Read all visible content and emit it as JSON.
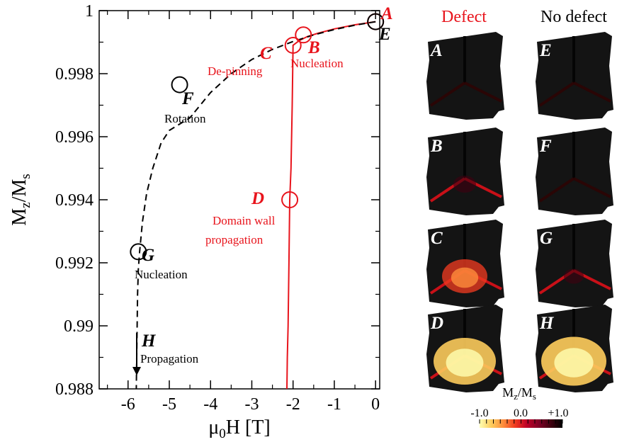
{
  "chart_data": {
    "type": "line",
    "xlabel_main": "μ",
    "xlabel_sub": "0",
    "xlabel_rest": "H [T]",
    "ylabel_main": "M",
    "ylabel_sub1": "z",
    "ylabel_mid": "/M",
    "ylabel_sub2": "s",
    "xlim": [
      -6.7,
      0.1
    ],
    "ylim": [
      0.988,
      1.0
    ],
    "xticks": [
      -6,
      -5,
      -4,
      -3,
      -2,
      -1,
      0
    ],
    "xtick_labels": [
      "-6",
      "-5",
      "-4",
      "-3",
      "-2",
      "-1",
      "0"
    ],
    "yticks": [
      0.988,
      0.99,
      0.992,
      0.994,
      0.996,
      0.998,
      1.0
    ],
    "ytick_labels": [
      "0.988",
      "0.99",
      "0.992",
      "0.994",
      "0.996",
      "0.998",
      "1"
    ],
    "series": [
      {
        "style": "solid",
        "color": "#e8141c",
        "x": [
          0,
          -0.5,
          -1.0,
          -1.4,
          -1.65,
          -1.85,
          -2.0,
          -2.02,
          -2.05,
          -2.08,
          -2.1,
          -2.12,
          -2.14,
          -2.15
        ],
        "y": [
          0.99965,
          0.99955,
          0.99942,
          0.99928,
          0.99918,
          0.99905,
          0.9989,
          0.997,
          0.995,
          0.994,
          0.992,
          0.99,
          0.989,
          0.988
        ]
      },
      {
        "style": "dashed",
        "color": "#000000",
        "x": [
          0,
          -0.5,
          -1.0,
          -1.5,
          -2.0,
          -2.5,
          -3.0,
          -3.5,
          -4.0,
          -4.5,
          -4.75,
          -5.0,
          -5.2,
          -5.4,
          -5.55,
          -5.65,
          -5.72,
          -5.75,
          -5.77,
          -5.78,
          -5.79,
          -5.8
        ],
        "y": [
          0.99965,
          0.99954,
          0.9994,
          0.99923,
          0.99902,
          0.99877,
          0.99845,
          0.998,
          0.9974,
          0.9966,
          0.99765,
          0.9962,
          0.9958,
          0.995,
          0.9942,
          0.9933,
          0.99235,
          0.9918,
          0.991,
          0.99,
          0.989,
          0.988
        ]
      }
    ],
    "points": [
      {
        "id": "A",
        "x": 0.0,
        "y": 0.99965,
        "color": "#e8141c",
        "label": "A"
      },
      {
        "id": "E",
        "x": 0.0,
        "y": 0.99965,
        "color": "#000000",
        "label": "E"
      },
      {
        "id": "B",
        "x": -1.75,
        "y": 0.99923,
        "color": "#e8141c",
        "label": "B",
        "desc": "Nucleation"
      },
      {
        "id": "C",
        "x": -2.0,
        "y": 0.9989,
        "color": "#e8141c",
        "label": "C",
        "desc": "De-pinning"
      },
      {
        "id": "D",
        "x": -2.08,
        "y": 0.994,
        "color": "#e8141c",
        "label": "D",
        "desc": "Domain wall propagation"
      },
      {
        "id": "F",
        "x": -4.75,
        "y": 0.99765,
        "color": "#000000",
        "label": "F",
        "desc": "Rotation"
      },
      {
        "id": "G",
        "x": -5.75,
        "y": 0.99235,
        "color": "#000000",
        "label": "G",
        "desc": "Nucleation"
      },
      {
        "id": "H",
        "x": -5.55,
        "y": 0.9887,
        "color": "#000000",
        "label": "H",
        "desc": "Propagation"
      }
    ],
    "annotations": {
      "A": "A",
      "B": "B",
      "C": "C",
      "D": "D",
      "E": "E",
      "F": "F",
      "G": "G",
      "H": "H",
      "B_desc": "Nucleation",
      "C_desc": "De-pinning",
      "D_desc1": "Domain wall",
      "D_desc2": "propagation",
      "F_desc": "Rotation",
      "G_desc": "Nucleation",
      "H_desc": "Propagation"
    }
  },
  "panels": {
    "col_defect": "Defect",
    "col_nodefect": "No defect",
    "defect_labels": [
      "A",
      "B",
      "C",
      "D"
    ],
    "nodefect_labels": [
      "E",
      "F",
      "G",
      "H"
    ],
    "defect_levels": [
      0.0,
      0.15,
      0.55,
      0.85
    ],
    "nodefect_levels": [
      0.0,
      0.0,
      0.1,
      0.9
    ]
  },
  "colorbar": {
    "title_main": "M",
    "title_sub1": "z",
    "title_mid": "/M",
    "title_sub2": "s",
    "tick_labels": [
      "-1.0",
      "0.0",
      "+1.0"
    ],
    "colors": [
      "#ffffb2",
      "#fecc5c",
      "#fd8d3c",
      "#f03b20",
      "#bd0026",
      "#800026",
      "#400010",
      "#000000"
    ]
  },
  "colors": {
    "red": "#e8141c",
    "black": "#000000"
  }
}
